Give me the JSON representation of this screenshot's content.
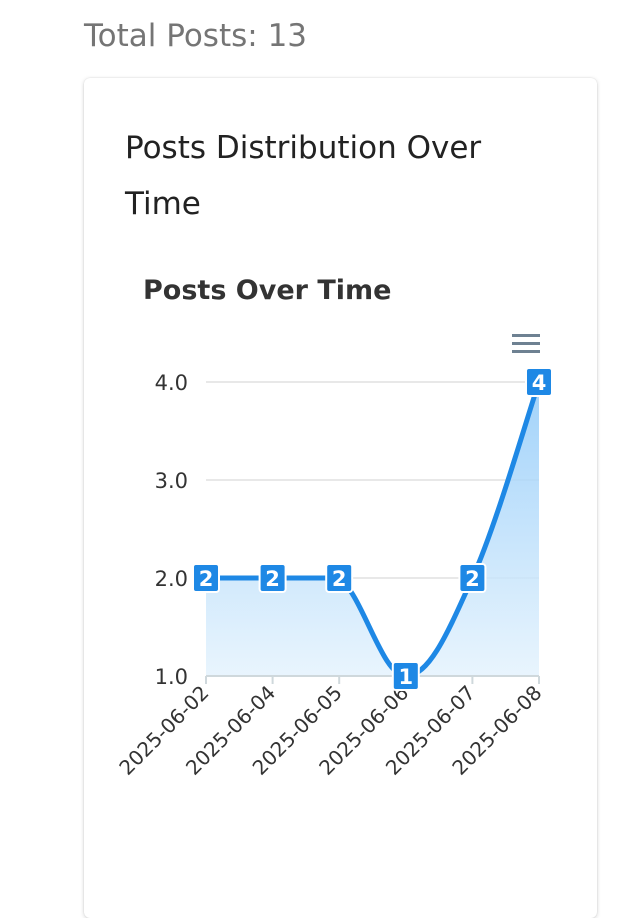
{
  "header": {
    "total_posts": "Total Posts: 13"
  },
  "card": {
    "title": "Posts Distribution Over Time"
  },
  "chart_data": {
    "type": "area",
    "title": "Posts Over Time",
    "xlabel": "",
    "ylabel": "",
    "categories": [
      "2025-06-02",
      "2025-06-04",
      "2025-06-05",
      "2025-06-06",
      "2025-06-07",
      "2025-06-08"
    ],
    "series": [
      {
        "values": [
          2,
          2,
          2,
          1,
          2,
          4
        ]
      }
    ],
    "ylim": [
      1,
      4
    ],
    "yticks": [
      "1.0",
      "2.0",
      "3.0",
      "4.0"
    ],
    "grid": true,
    "data_labels": true,
    "colors": {
      "line": "#1E88E5",
      "area_top": "#90CAF9",
      "area_bottom": "#E3F2FD",
      "label_bg": "#1E88E5",
      "grid": "#e0e0e0"
    }
  }
}
